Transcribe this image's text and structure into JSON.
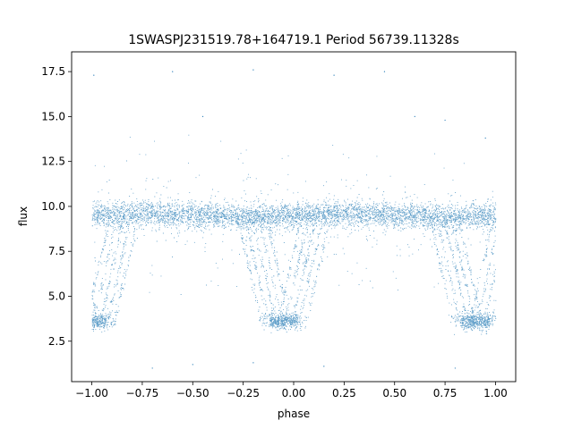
{
  "chart_data": {
    "type": "scatter",
    "title": "1SWASPJ231519.78+164719.1 Period 56739.11328s",
    "xlabel": "phase",
    "ylabel": "flux",
    "xlim": [
      -1.1,
      1.1
    ],
    "ylim": [
      0.25,
      18.6
    ],
    "x_ticks": [
      -1.0,
      -0.75,
      -0.5,
      -0.25,
      0.0,
      0.25,
      0.5,
      0.75,
      1.0
    ],
    "x_tick_labels": [
      "−1.00",
      "−0.75",
      "−0.50",
      "−0.25",
      "0.00",
      "0.25",
      "0.50",
      "0.75",
      "1.00"
    ],
    "y_ticks": [
      2.5,
      5.0,
      7.5,
      10.0,
      12.5,
      15.0,
      17.5
    ],
    "y_tick_labels": [
      "2.5",
      "5.0",
      "7.5",
      "10.0",
      "12.5",
      "15.0",
      "17.5"
    ],
    "grid": false,
    "legend": "none",
    "marker_color": "#1f77b4",
    "phase_range": [
      -1.0,
      1.0
    ],
    "baseline_flux": 9.5,
    "eclipses": [
      {
        "phase_center": -0.05,
        "depth_flux": 3.6
      },
      {
        "phase_center": 0.9,
        "depth_flux": 3.6
      },
      {
        "phase_center": -1.0,
        "depth_flux": 3.6
      }
    ],
    "outliers": [
      {
        "x": -0.99,
        "y": 17.3
      },
      {
        "x": -0.6,
        "y": 17.5
      },
      {
        "x": -0.2,
        "y": 17.6
      },
      {
        "x": 0.2,
        "y": 17.3
      },
      {
        "x": 0.45,
        "y": 17.5
      },
      {
        "x": -0.45,
        "y": 15.0
      },
      {
        "x": 0.6,
        "y": 15.0
      },
      {
        "x": 0.75,
        "y": 14.8
      },
      {
        "x": 0.95,
        "y": 13.8
      },
      {
        "x": -0.7,
        "y": 1.0
      },
      {
        "x": -0.5,
        "y": 1.2
      },
      {
        "x": -0.2,
        "y": 1.3
      },
      {
        "x": 0.15,
        "y": 1.1
      },
      {
        "x": 0.8,
        "y": 1.0
      }
    ]
  }
}
